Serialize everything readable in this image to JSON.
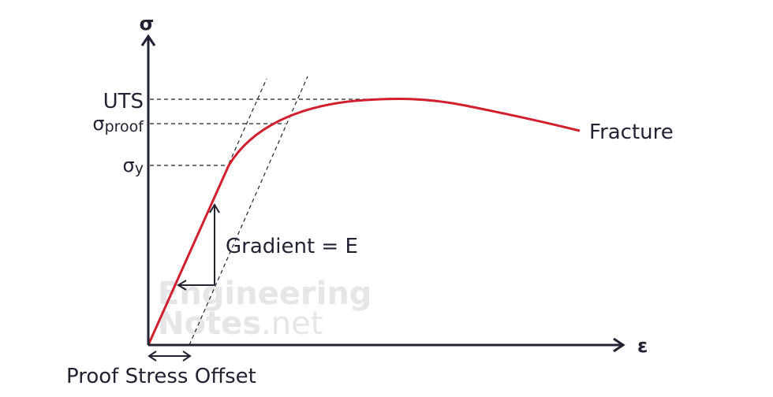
{
  "axes": {
    "y_label": "σ",
    "x_label": "ε"
  },
  "levels": {
    "uts": "UTS",
    "proof": {
      "symbol": "σ",
      "subscript": "proof"
    },
    "yield": {
      "symbol": "σ",
      "subscript": "y"
    }
  },
  "annotations": {
    "fracture": "Fracture",
    "gradient": "Gradient = E",
    "offset": "Proof Stress Offset"
  },
  "watermark": {
    "line1": "Engineering",
    "line2_bold": "Notes",
    "line2_rest": ".net"
  }
}
